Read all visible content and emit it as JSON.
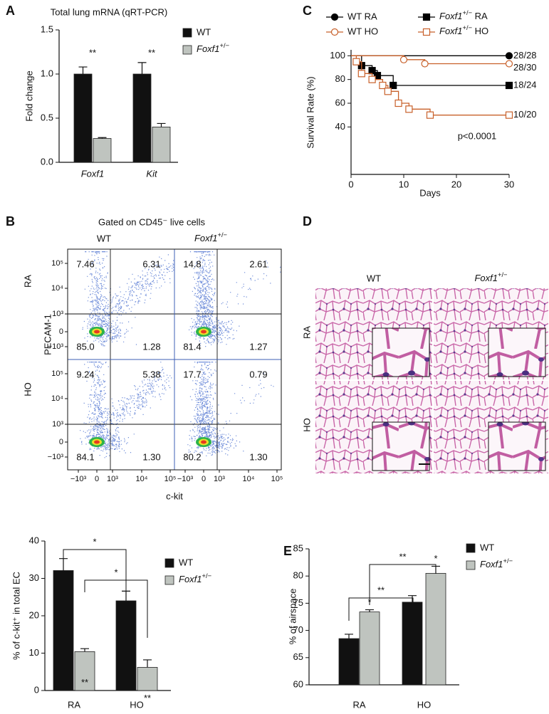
{
  "chart_data": [
    {
      "panel": "A",
      "type": "bar",
      "title": "Total lung mRNA (qRT-PCR)",
      "y_label": "Fold change",
      "categories": [
        "Foxf1",
        "Kit"
      ],
      "series": [
        {
          "name": "WT",
          "color": "#111111",
          "values": [
            1.0,
            1.0
          ],
          "errors": [
            0.08,
            0.13
          ]
        },
        {
          "name": "Foxf1+/−",
          "color": "#bfc4bf",
          "values": [
            0.27,
            0.4
          ],
          "errors": [
            0.01,
            0.04
          ]
        }
      ],
      "pair_labels": [
        "**",
        "**"
      ],
      "ylim": [
        0,
        1.5
      ],
      "yticks": [
        {
          "value": 0,
          "label": "0.0"
        },
        0.5,
        {
          "value": 1,
          "label": "1.0"
        },
        {
          "value": 1.5,
          "label": "1.5"
        }
      ]
    },
    {
      "panel": "C",
      "type": "survival",
      "x_label": "Days",
      "y_label": "Survival Rate (%)",
      "annotation": "p<0.0001",
      "xlim": [
        0,
        30
      ],
      "xticks": [
        0,
        10,
        20,
        30
      ],
      "ylim": [
        0,
        105
      ],
      "yticks": [
        40,
        60,
        80,
        100
      ],
      "series": [
        {
          "name": "WT RA",
          "color": "#000000",
          "marker": "circle",
          "filled": true,
          "end_label": "28/28",
          "x": [
            0,
            30
          ],
          "values": [
            100,
            100
          ]
        },
        {
          "name": "Foxf1+/− RA",
          "color": "#000000",
          "marker": "square",
          "filled": true,
          "end_label": "18/24",
          "x": [
            0,
            2,
            4,
            5,
            8,
            30
          ],
          "values": [
            100,
            91.7,
            87.5,
            83.3,
            75,
            75
          ]
        },
        {
          "name": "WT HO",
          "color": "#c8602a",
          "marker": "circle",
          "filled": false,
          "end_label": "28/30",
          "x": [
            0,
            10,
            14,
            30
          ],
          "values": [
            100,
            96.7,
            93.3,
            93.3
          ]
        },
        {
          "name": "Foxf1+/− HO",
          "color": "#c8602a",
          "marker": "square",
          "filled": false,
          "end_label": "10/20",
          "x": [
            0,
            1,
            2,
            4,
            6,
            7,
            9,
            11,
            15,
            30
          ],
          "values": [
            100,
            95,
            85,
            80,
            75,
            70,
            60,
            55,
            50,
            50
          ]
        }
      ]
    },
    {
      "type": "bar",
      "y_label": "% of c-kit⁺ in total EC",
      "categories": [
        "RA",
        "HO"
      ],
      "series": [
        {
          "name": "WT",
          "color": "#111111",
          "values": [
            32.1,
            24.0
          ],
          "errors": [
            3.2,
            2.6
          ]
        },
        {
          "name": "Foxf1+/−",
          "color": "#bfc4bf",
          "values": [
            10.4,
            6.2
          ],
          "errors": [
            0.8,
            2.0
          ],
          "labels": [
            "**",
            "**"
          ]
        }
      ],
      "brackets": [
        "*",
        "*"
      ],
      "ylim": [
        0,
        40
      ],
      "yticks": [
        0,
        10,
        20,
        30,
        40
      ]
    },
    {
      "panel": "E",
      "type": "bar",
      "y_label": "% of airspace",
      "categories": [
        "RA",
        "HO"
      ],
      "series": [
        {
          "name": "WT",
          "color": "#111111",
          "values": [
            68.5,
            75.2
          ],
          "errors": [
            0.8,
            1.2
          ]
        },
        {
          "name": "Foxf1+/−",
          "color": "#bfc4bf",
          "values": [
            73.4,
            80.5
          ],
          "errors": [
            0.4,
            1.3
          ],
          "labels": [
            "*",
            "*"
          ]
        }
      ],
      "brackets": [
        "**",
        "**"
      ],
      "ylim": [
        60,
        85
      ],
      "yticks": [
        60,
        65,
        70,
        75,
        80,
        85
      ]
    }
  ],
  "flow_cytometry": {
    "panel": "B",
    "title": "Gated on CD45⁻ live cells",
    "columns": [
      "WT",
      "Foxf1+/−"
    ],
    "rows": [
      "RA",
      "HO"
    ],
    "y_label": "PECAM-1",
    "x_label": "c-kit",
    "y_ticks": [
      "10⁵",
      "10⁴",
      "10³",
      "0",
      "−10³"
    ],
    "x_ticks": [
      "−10³",
      "0",
      "10³",
      "10⁴",
      "10⁵"
    ],
    "plots": [
      [
        "7.46",
        "6.31",
        "85.0",
        "1.28"
      ],
      [
        "14.8",
        "2.61",
        "81.4",
        "1.27"
      ],
      [
        "9.24",
        "5.38",
        "84.1",
        "1.30"
      ],
      [
        "17.7",
        "0.79",
        "80.2",
        "1.30"
      ]
    ]
  },
  "histology": {
    "panel": "D",
    "columns": [
      "WT",
      "Foxf1+/−"
    ],
    "rows": [
      "RA",
      "HO"
    ]
  }
}
